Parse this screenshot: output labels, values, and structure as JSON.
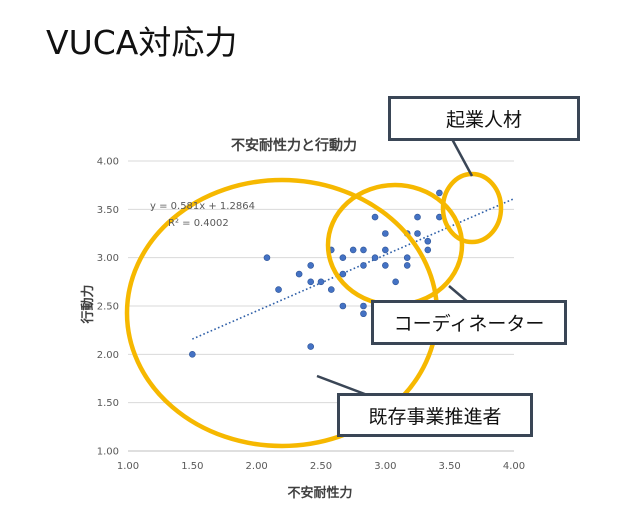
{
  "slide": {
    "title": "VUCA対応力"
  },
  "chart_data": {
    "type": "scatter",
    "title": "不安耐性力と行動力",
    "xlabel": "不安耐性力",
    "ylabel": "行動力",
    "xlim": [
      1.0,
      4.0
    ],
    "ylim": [
      1.0,
      4.0
    ],
    "x_ticks": [
      "1.00",
      "1.50",
      "2.00",
      "2.50",
      "3.00",
      "3.50",
      "4.00"
    ],
    "y_ticks": [
      "1.00",
      "1.50",
      "2.00",
      "2.50",
      "3.00",
      "3.50",
      "4.00"
    ],
    "grid": "horizontal",
    "trendline": {
      "slope": 0.581,
      "intercept": 1.2864,
      "x_range": [
        1.5,
        4.0
      ],
      "equation_label": "y = 0.581x + 1.2864",
      "r2_label": "R² = 0.4002"
    },
    "points": [
      {
        "x": 1.5,
        "y": 2.0
      },
      {
        "x": 2.08,
        "y": 3.0
      },
      {
        "x": 2.17,
        "y": 2.67
      },
      {
        "x": 2.33,
        "y": 2.83
      },
      {
        "x": 2.42,
        "y": 2.92
      },
      {
        "x": 2.42,
        "y": 2.75
      },
      {
        "x": 2.42,
        "y": 2.08
      },
      {
        "x": 2.5,
        "y": 2.75
      },
      {
        "x": 2.58,
        "y": 3.08
      },
      {
        "x": 2.58,
        "y": 2.67
      },
      {
        "x": 2.67,
        "y": 3.0
      },
      {
        "x": 2.67,
        "y": 2.83
      },
      {
        "x": 2.67,
        "y": 2.5
      },
      {
        "x": 2.75,
        "y": 3.08
      },
      {
        "x": 2.83,
        "y": 3.08
      },
      {
        "x": 2.83,
        "y": 2.92
      },
      {
        "x": 2.83,
        "y": 2.5
      },
      {
        "x": 2.83,
        "y": 2.42
      },
      {
        "x": 2.92,
        "y": 3.42
      },
      {
        "x": 2.92,
        "y": 3.0
      },
      {
        "x": 3.0,
        "y": 3.25
      },
      {
        "x": 3.0,
        "y": 3.08
      },
      {
        "x": 3.0,
        "y": 2.92
      },
      {
        "x": 3.08,
        "y": 2.75
      },
      {
        "x": 3.17,
        "y": 3.25
      },
      {
        "x": 3.17,
        "y": 3.0
      },
      {
        "x": 3.17,
        "y": 2.92
      },
      {
        "x": 3.25,
        "y": 3.42
      },
      {
        "x": 3.25,
        "y": 3.25
      },
      {
        "x": 3.33,
        "y": 3.17
      },
      {
        "x": 3.33,
        "y": 3.08
      },
      {
        "x": 3.42,
        "y": 3.42
      },
      {
        "x": 3.42,
        "y": 3.67
      }
    ]
  },
  "annotations": {
    "kigyojin": "起業人材",
    "coordinator": "コーディネーター",
    "kizon": "既存事業推進者"
  },
  "colors": {
    "marker": "#4472c4",
    "trendline": "#2e5fa8",
    "highlight_ring": "#f6b800",
    "callout_border": "#3a4656",
    "grid": "#d9d9d9"
  }
}
